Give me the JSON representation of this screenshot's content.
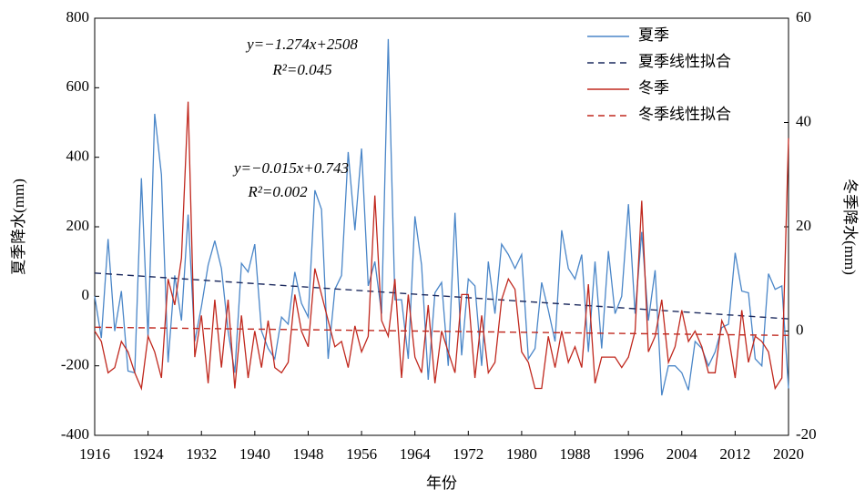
{
  "chart_data": {
    "type": "line",
    "xlabel": "年份",
    "ylabel": "夏季降水(mm)",
    "y2label": "冬季降水(mm)",
    "x": [
      1916,
      1917,
      1918,
      1919,
      1920,
      1921,
      1922,
      1923,
      1924,
      1925,
      1926,
      1927,
      1928,
      1929,
      1930,
      1931,
      1932,
      1933,
      1934,
      1935,
      1936,
      1937,
      1938,
      1939,
      1940,
      1941,
      1942,
      1943,
      1944,
      1945,
      1946,
      1947,
      1948,
      1949,
      1950,
      1951,
      1952,
      1953,
      1954,
      1955,
      1956,
      1957,
      1958,
      1959,
      1960,
      1961,
      1962,
      1963,
      1964,
      1965,
      1966,
      1967,
      1968,
      1969,
      1970,
      1971,
      1972,
      1973,
      1974,
      1975,
      1976,
      1977,
      1978,
      1979,
      1980,
      1981,
      1982,
      1983,
      1984,
      1985,
      1986,
      1987,
      1988,
      1989,
      1990,
      1991,
      1992,
      1993,
      1994,
      1995,
      1996,
      1997,
      1998,
      1999,
      2000,
      2001,
      2002,
      2003,
      2004,
      2005,
      2006,
      2007,
      2008,
      2009,
      2010,
      2011,
      2012,
      2013,
      2014,
      2015,
      2016,
      2017,
      2018,
      2019,
      2020
    ],
    "series": [
      {
        "name": "夏季",
        "color": "#4a86c8",
        "dash": false,
        "axis": "y",
        "values": [
          0,
          -120,
          165,
          -100,
          15,
          -215,
          -220,
          340,
          -120,
          525,
          350,
          -190,
          60,
          -70,
          235,
          -130,
          -30,
          90,
          160,
          80,
          -100,
          -220,
          95,
          70,
          150,
          -100,
          -150,
          -180,
          -60,
          -80,
          70,
          -20,
          -60,
          305,
          250,
          -180,
          20,
          60,
          415,
          190,
          425,
          30,
          100,
          -50,
          740,
          -10,
          -10,
          -180,
          230,
          90,
          -240,
          10,
          40,
          -200,
          240,
          -170,
          50,
          30,
          -200,
          100,
          -50,
          150,
          120,
          80,
          120,
          -180,
          -150,
          40,
          -40,
          -130,
          190,
          80,
          50,
          120,
          -160,
          100,
          -150,
          130,
          -50,
          0,
          265,
          -50,
          185,
          -70,
          75,
          -285,
          -200,
          -200,
          -220,
          -270,
          -130,
          -150,
          -200,
          -160,
          -90,
          -80,
          125,
          15,
          10,
          -180,
          -200,
          65,
          20,
          30,
          -265
        ]
      },
      {
        "name": "夏季线性拟合",
        "color": "#1c2a5e",
        "dash": true,
        "axis": "y",
        "x": [
          1916,
          2020
        ],
        "values": [
          67,
          -65
        ]
      },
      {
        "name": "冬季",
        "color": "#c0281e",
        "dash": false,
        "axis": "y2",
        "values": [
          0,
          -2,
          -8,
          -7,
          -2,
          -4,
          -8,
          -11,
          -1,
          -4,
          -9,
          10,
          5,
          14,
          44,
          -5,
          3,
          -10,
          6,
          -7,
          6,
          -11,
          3,
          -9,
          0,
          -7,
          2,
          -7,
          -8,
          -6,
          7,
          0,
          -3,
          12,
          7,
          2,
          -3,
          -2,
          -7,
          1,
          -4,
          -1,
          26,
          2,
          -1,
          10,
          -9,
          7,
          -5,
          -8,
          5,
          -10,
          0,
          -4,
          -8,
          7,
          7,
          -9,
          3,
          -8,
          -6,
          6,
          10,
          8,
          -4,
          -6,
          -11,
          -11,
          -1,
          -7,
          0,
          -6,
          -3,
          -7,
          9,
          -10,
          -5,
          -5,
          -5,
          -7,
          -5,
          0,
          25,
          -4,
          -1,
          6,
          -6,
          -3,
          4,
          -2,
          0,
          -3,
          -8,
          -8,
          2,
          -1,
          -9,
          4,
          -6,
          -1,
          -2,
          -4,
          -11,
          -9,
          37
        ]
      },
      {
        "name": "冬季线性拟合",
        "color": "#c0281e",
        "dash": true,
        "axis": "y2",
        "x": [
          1916,
          2020
        ],
        "values": [
          0.73,
          -0.83
        ]
      }
    ],
    "xlim": [
      1916,
      2020
    ],
    "xticks": [
      1916,
      1924,
      1932,
      1940,
      1948,
      1956,
      1964,
      1972,
      1980,
      1988,
      1996,
      2004,
      2012,
      2020
    ],
    "ylim": [
      -400,
      800
    ],
    "yticks": [
      -400,
      -200,
      0,
      200,
      400,
      600,
      800
    ],
    "y2lim": [
      -20,
      60
    ],
    "y2ticks": [
      -20,
      0,
      20,
      40,
      60
    ],
    "annotations": [
      {
        "text": "y=−1.274x+2508",
        "color": "#4a86c8"
      },
      {
        "text": "R²=0.045",
        "color": "#4a86c8"
      },
      {
        "text": "y=−0.015x+0.743",
        "color": "#c0281e"
      },
      {
        "text": "R²=0.002",
        "color": "#c0281e"
      }
    ],
    "legend": "upper right"
  }
}
